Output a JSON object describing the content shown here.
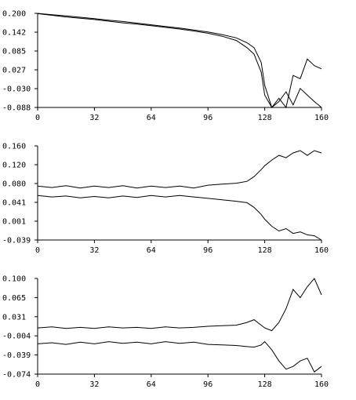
{
  "chart_data": [
    {
      "type": "line",
      "title": "",
      "xlabel": "",
      "ylabel": "",
      "xlim": [
        0,
        160
      ],
      "ylim": [
        -0.088,
        0.2
      ],
      "grid": false,
      "x_ticks": [
        "0",
        "32",
        "64",
        "96",
        "128",
        "160"
      ],
      "y_ticks": [
        "0.200",
        "0.142",
        "0.085",
        "0.027",
        "-0.030",
        "-0.088"
      ],
      "x": [
        0,
        8,
        16,
        24,
        32,
        40,
        48,
        56,
        64,
        72,
        80,
        88,
        96,
        104,
        112,
        118,
        122,
        126,
        128,
        132,
        136,
        140,
        144,
        148,
        152,
        156,
        160
      ],
      "series": [
        {
          "values": [
            0.2,
            0.196,
            0.192,
            0.188,
            0.184,
            0.179,
            0.175,
            0.17,
            0.165,
            0.16,
            0.155,
            0.149,
            0.143,
            0.135,
            0.125,
            0.11,
            0.095,
            0.05,
            -0.02,
            -0.088,
            -0.06,
            -0.088,
            0.01,
            0.0,
            0.06,
            0.04,
            0.03
          ]
        },
        {
          "values": [
            0.199,
            0.194,
            0.189,
            0.185,
            0.181,
            0.176,
            0.171,
            0.167,
            0.162,
            0.157,
            0.152,
            0.146,
            0.139,
            0.13,
            0.117,
            0.095,
            0.075,
            0.02,
            -0.05,
            -0.088,
            -0.07,
            -0.04,
            -0.08,
            -0.03,
            -0.05,
            -0.07,
            -0.088
          ]
        }
      ]
    },
    {
      "type": "line",
      "title": "",
      "xlabel": "",
      "ylabel": "",
      "xlim": [
        0,
        160
      ],
      "ylim": [
        -0.039,
        0.16
      ],
      "grid": false,
      "x_ticks": [
        "0",
        "32",
        "64",
        "96",
        "128",
        "160"
      ],
      "y_ticks": [
        "0.160",
        "0.120",
        "0.080",
        "0.041",
        "0.001",
        "-0.039"
      ],
      "x": [
        0,
        8,
        16,
        24,
        32,
        40,
        48,
        56,
        64,
        72,
        80,
        88,
        96,
        104,
        112,
        118,
        122,
        126,
        128,
        132,
        136,
        140,
        144,
        148,
        152,
        156,
        160
      ],
      "series": [
        {
          "values": [
            0.075,
            0.072,
            0.076,
            0.071,
            0.075,
            0.072,
            0.076,
            0.071,
            0.075,
            0.072,
            0.075,
            0.071,
            0.077,
            0.079,
            0.081,
            0.085,
            0.095,
            0.11,
            0.118,
            0.13,
            0.14,
            0.135,
            0.145,
            0.15,
            0.14,
            0.15,
            0.145
          ]
        },
        {
          "values": [
            0.055,
            0.052,
            0.054,
            0.05,
            0.053,
            0.05,
            0.054,
            0.051,
            0.055,
            0.052,
            0.055,
            0.052,
            0.049,
            0.046,
            0.043,
            0.04,
            0.03,
            0.015,
            0.005,
            -0.01,
            -0.02,
            -0.015,
            -0.025,
            -0.022,
            -0.028,
            -0.03,
            -0.039
          ]
        }
      ]
    },
    {
      "type": "line",
      "title": "",
      "xlabel": "",
      "ylabel": "",
      "xlim": [
        0,
        160
      ],
      "ylim": [
        -0.074,
        0.1
      ],
      "grid": false,
      "x_ticks": [
        "0",
        "32",
        "64",
        "96",
        "128",
        "160"
      ],
      "y_ticks": [
        "0.100",
        "0.065",
        "0.031",
        "-0.004",
        "-0.039",
        "-0.074"
      ],
      "x": [
        0,
        8,
        16,
        24,
        32,
        40,
        48,
        56,
        64,
        72,
        80,
        88,
        96,
        104,
        112,
        118,
        122,
        126,
        128,
        132,
        136,
        140,
        144,
        148,
        152,
        156,
        160
      ],
      "series": [
        {
          "values": [
            0.01,
            0.012,
            0.009,
            0.011,
            0.009,
            0.012,
            0.01,
            0.011,
            0.009,
            0.012,
            0.01,
            0.011,
            0.013,
            0.014,
            0.015,
            0.02,
            0.025,
            0.015,
            0.01,
            0.005,
            0.02,
            0.045,
            0.08,
            0.065,
            0.085,
            0.1,
            0.07
          ]
        },
        {
          "values": [
            -0.019,
            -0.017,
            -0.02,
            -0.016,
            -0.019,
            -0.015,
            -0.018,
            -0.016,
            -0.019,
            -0.015,
            -0.018,
            -0.016,
            -0.02,
            -0.021,
            -0.022,
            -0.024,
            -0.025,
            -0.021,
            -0.015,
            -0.03,
            -0.05,
            -0.065,
            -0.06,
            -0.05,
            -0.045,
            -0.07,
            -0.06
          ]
        }
      ]
    }
  ]
}
